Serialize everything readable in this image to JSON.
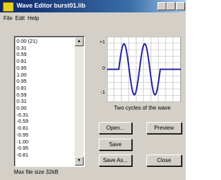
{
  "window": {
    "title": "Wave Editor burst01.lib"
  },
  "menu": [
    "File",
    "Edit",
    "Help"
  ],
  "list": {
    "items": [
      "0.00 (21)",
      "0.31",
      "0.59",
      "0.81",
      "0.95",
      "1.00",
      "0.95",
      "0.81",
      "0.59",
      "0.31",
      "0.00",
      "-0.31",
      "-0.59",
      "-0.81",
      "-0.95",
      "-1.00",
      "-0.95",
      "-0.81"
    ]
  },
  "graph": {
    "y_labels": [
      "+1",
      "0",
      "-1"
    ],
    "caption": "Two cycles of the wave"
  },
  "buttons": {
    "open": "Open...",
    "preview": "Preview",
    "save": "Save",
    "save_as": "Save As...",
    "close": "Close"
  },
  "status": "Max file size 32kB"
}
